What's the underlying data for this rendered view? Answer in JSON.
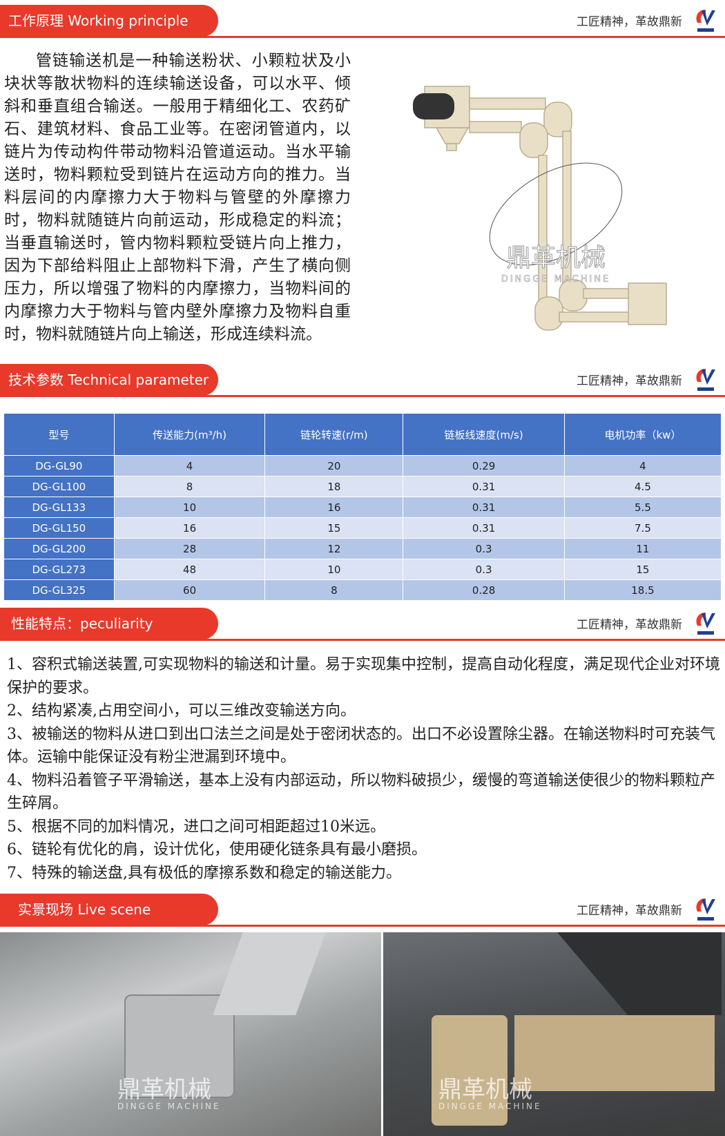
{
  "slogan": "工匠精神，革故鼎新",
  "brand": {
    "logo_text": "鼎革机械",
    "watermark_cn": "鼎革机械",
    "watermark_en": "DINGGE MACHINE",
    "accent": "#e8392b",
    "table_header": "#4472c4"
  },
  "sections": {
    "working": "工作原理  Working principle",
    "technical": "技术参数 Technical parameter",
    "peculiarity": "性能特点：peculiarity",
    "live": "实景现场     Live scene"
  },
  "intro": "管链输送机是一种输送粉状、小颗粒状及小块状等散状物料的连续输送设备，可以水平、倾斜和垂直组合输送。一般用于精细化工、农药矿石、建筑材料、食品工业等。在密闭管道内，以链片为传动构件带动物料沿管道运动。当水平输送时，物料颗粒受到链片在运动方向的推力。当料层间的内摩擦力大于物料与管壁的外摩擦力时，物料就随链片向前运动，形成稳定的料流；当垂直输送时，管内物料颗粒受链片向上推力，因为下部给料阻止上部物料下滑，产生了横向侧压力，所以增强了物料的内摩擦力，当物料间的内摩擦力大于物料与管内壁外摩擦力及物料自重时，物料就随链片向上输送，形成连续料流。",
  "table": {
    "headers": [
      "型号",
      "传送能力(m³/h)",
      "链轮转速(r/m)",
      "链板线速度(m/s)",
      "电机功率（kw）"
    ],
    "rows": [
      [
        "DG-GL90",
        "4",
        "20",
        "0.29",
        "4"
      ],
      [
        "DG-GL100",
        "8",
        "18",
        "0.31",
        "4.5"
      ],
      [
        "DG-GL133",
        "10",
        "16",
        "0.31",
        "5.5"
      ],
      [
        "DG-GL150",
        "16",
        "15",
        "0.31",
        "7.5"
      ],
      [
        "DG-GL200",
        "28",
        "12",
        "0.3",
        "11"
      ],
      [
        "DG-GL273",
        "48",
        "10",
        "0.3",
        "15"
      ],
      [
        "DG-GL325",
        "60",
        "8",
        "0.28",
        "18.5"
      ]
    ]
  },
  "features": [
    "1、容积式输送装置,可实现物料的输送和计量。易于实现集中控制，提高自动化程度，满足现代企业对环境保护的要求。",
    "2、结构紧凑,占用空间小，可以三维改变输送方向。",
    "3、被输送的物料从进口到出口法兰之间是处于密闭状态的。出口不必设置除尘器。在输送物料时可充装气体。运输中能保证没有粉尘泄漏到环境中。",
    "4、物料沿着管子平滑输送，基本上没有内部运动，所以物料破损少，缓慢的弯道输送使很少的物料颗粒产生碎屑。",
    "5、根据不同的加料情况，进口之间可相距超过10米远。",
    "6、链轮有优化的肩，设计优化，使用硬化链条具有最小磨损。",
    "7、特殊的输送盘,具有极低的摩擦系数和稳定的输送能力。"
  ]
}
